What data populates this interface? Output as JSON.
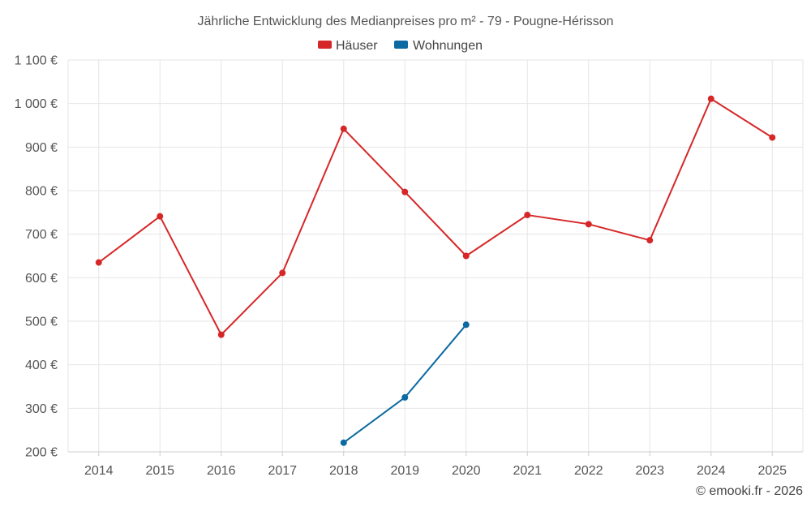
{
  "chart_data": {
    "type": "line",
    "title": "Jährliche Entwicklung des Medianpreises pro m² - 79 - Pougne-Hérisson",
    "categories": [
      "2014",
      "2015",
      "2016",
      "2017",
      "2018",
      "2019",
      "2020",
      "2021",
      "2022",
      "2023",
      "2024",
      "2025"
    ],
    "series": [
      {
        "name": "Häuser",
        "color": "#d62728",
        "values": [
          635,
          741,
          469,
          611,
          942,
          797,
          650,
          744,
          723,
          686,
          1011,
          922
        ]
      },
      {
        "name": "Wohnungen",
        "color": "#0a6aa1",
        "values": [
          null,
          null,
          null,
          null,
          221,
          325,
          492,
          null,
          null,
          null,
          null,
          null
        ]
      }
    ],
    "ylim": [
      200,
      1100
    ],
    "yticks": [
      200,
      300,
      400,
      500,
      600,
      700,
      800,
      900,
      1000,
      1100
    ],
    "ytick_labels": [
      "200 €",
      "300 €",
      "400 €",
      "500 €",
      "600 €",
      "700 €",
      "800 €",
      "900 €",
      "1 000 €",
      "1 100 €"
    ],
    "xlabel": "",
    "ylabel": "",
    "grid": true,
    "legend_position": "top-center"
  },
  "credit": "© emooki.fr - 2026"
}
